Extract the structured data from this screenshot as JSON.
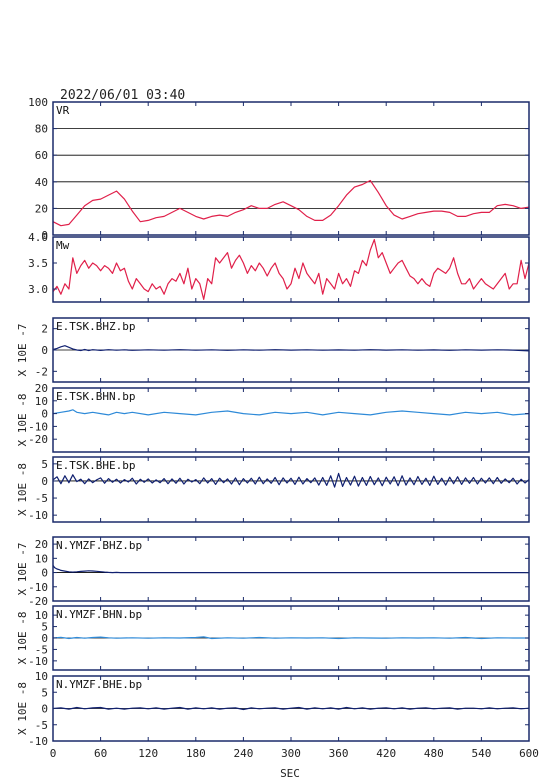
{
  "header": {
    "datetime": "2022/06/01  03:40"
  },
  "xaxis": {
    "label": "SEC",
    "ticks": [
      0,
      60,
      120,
      180,
      240,
      300,
      360,
      420,
      480,
      540,
      600
    ],
    "range": [
      0,
      600
    ]
  },
  "colors": {
    "vr": "#e0204a",
    "mw": "#e0204a",
    "dark": "#102070",
    "light": "#2e8ad8",
    "axis": "#1a2a6a",
    "grid": "#000000"
  },
  "chart_data": [
    {
      "id": "vr",
      "type": "line",
      "label": "VR",
      "ylim": [
        0,
        100
      ],
      "ytick_labels": [
        "100",
        "80",
        "60",
        "40",
        "20",
        "0"
      ],
      "grid": true,
      "x": [
        0,
        10,
        20,
        30,
        40,
        50,
        60,
        70,
        80,
        90,
        100,
        110,
        120,
        130,
        140,
        150,
        160,
        170,
        180,
        190,
        200,
        210,
        220,
        230,
        240,
        250,
        260,
        270,
        280,
        290,
        300,
        310,
        320,
        330,
        340,
        350,
        360,
        370,
        380,
        390,
        400,
        410,
        420,
        430,
        440,
        450,
        460,
        470,
        480,
        490,
        500,
        510,
        520,
        530,
        540,
        550,
        560,
        570,
        580,
        590,
        600
      ],
      "values": [
        10,
        7,
        8,
        15,
        22,
        26,
        27,
        30,
        33,
        27,
        18,
        10,
        11,
        13,
        14,
        17,
        20,
        17,
        14,
        12,
        14,
        15,
        14,
        17,
        19,
        22,
        20,
        20,
        23,
        25,
        22,
        19,
        14,
        11,
        11,
        15,
        22,
        30,
        36,
        38,
        41,
        32,
        22,
        15,
        12,
        14,
        16,
        17,
        18,
        18,
        17,
        14,
        14,
        16,
        17,
        17,
        22,
        23,
        22,
        20,
        21
      ]
    },
    {
      "id": "mw",
      "type": "line",
      "label": "Mw",
      "ylim": [
        2.75,
        4.0
      ],
      "ytick_labels": [
        "4.0",
        "3.5",
        "3.0"
      ],
      "grid": false,
      "x": [
        0,
        5,
        10,
        15,
        20,
        25,
        30,
        35,
        40,
        45,
        50,
        55,
        60,
        65,
        70,
        75,
        80,
        85,
        90,
        95,
        100,
        105,
        110,
        115,
        120,
        125,
        130,
        135,
        140,
        145,
        150,
        155,
        160,
        165,
        170,
        175,
        180,
        185,
        190,
        195,
        200,
        205,
        210,
        215,
        220,
        225,
        230,
        235,
        240,
        245,
        250,
        255,
        260,
        265,
        270,
        275,
        280,
        285,
        290,
        295,
        300,
        305,
        310,
        315,
        320,
        325,
        330,
        335,
        340,
        345,
        350,
        355,
        360,
        365,
        370,
        375,
        380,
        385,
        390,
        395,
        400,
        405,
        410,
        415,
        420,
        425,
        430,
        435,
        440,
        445,
        450,
        455,
        460,
        465,
        470,
        475,
        480,
        485,
        490,
        495,
        500,
        505,
        510,
        515,
        520,
        525,
        530,
        535,
        540,
        545,
        550,
        555,
        560,
        565,
        570,
        575,
        580,
        585,
        590,
        595,
        600
      ],
      "values": [
        2.95,
        3.05,
        2.9,
        3.1,
        3.0,
        3.6,
        3.3,
        3.45,
        3.55,
        3.4,
        3.5,
        3.45,
        3.35,
        3.45,
        3.4,
        3.3,
        3.5,
        3.35,
        3.4,
        3.15,
        3.0,
        3.2,
        3.1,
        3.0,
        2.95,
        3.1,
        3.0,
        3.05,
        2.9,
        3.1,
        3.2,
        3.15,
        3.3,
        3.1,
        3.4,
        3.0,
        3.2,
        3.1,
        2.8,
        3.2,
        3.1,
        3.6,
        3.5,
        3.6,
        3.7,
        3.4,
        3.55,
        3.65,
        3.5,
        3.3,
        3.45,
        3.35,
        3.5,
        3.4,
        3.25,
        3.4,
        3.5,
        3.3,
        3.2,
        3.0,
        3.1,
        3.4,
        3.2,
        3.5,
        3.3,
        3.2,
        3.1,
        3.3,
        2.9,
        3.2,
        3.1,
        3.0,
        3.3,
        3.1,
        3.2,
        3.05,
        3.35,
        3.3,
        3.55,
        3.45,
        3.75,
        3.95,
        3.6,
        3.7,
        3.5,
        3.3,
        3.4,
        3.5,
        3.55,
        3.4,
        3.25,
        3.2,
        3.1,
        3.2,
        3.1,
        3.05,
        3.3,
        3.4,
        3.35,
        3.3,
        3.4,
        3.6,
        3.3,
        3.1,
        3.1,
        3.2,
        3.0,
        3.1,
        3.2,
        3.1,
        3.05,
        3.0,
        3.1,
        3.2,
        3.3,
        3.0,
        3.1,
        3.1,
        3.55,
        3.2,
        3.5
      ]
    },
    {
      "id": "e-tsk-bhz",
      "type": "line",
      "label": "E.TSK.BHZ.bp",
      "ylabel": "X 10E -7",
      "ylim": [
        -3,
        3
      ],
      "ytick_labels": [
        "2",
        "0",
        "-2"
      ],
      "color": "dark",
      "zero_line": true,
      "x": [
        0,
        5,
        10,
        15,
        20,
        25,
        30,
        35,
        40,
        45,
        50,
        60,
        70,
        80,
        90,
        100,
        120,
        140,
        160,
        180,
        200,
        220,
        240,
        260,
        280,
        300,
        320,
        340,
        360,
        380,
        400,
        420,
        440,
        460,
        480,
        500,
        520,
        540,
        560,
        580,
        600
      ],
      "values": [
        0.05,
        0.15,
        0.3,
        0.4,
        0.25,
        0.1,
        0.0,
        -0.05,
        0.05,
        -0.05,
        0.03,
        -0.04,
        0.03,
        -0.02,
        0.02,
        -0.03,
        0.02,
        -0.02,
        0.03,
        -0.02,
        0.02,
        -0.03,
        0.02,
        -0.02,
        0.03,
        -0.01,
        0.02,
        -0.02,
        0.01,
        -0.02,
        0.03,
        -0.01,
        0.02,
        -0.02,
        0.01,
        -0.03,
        0.02,
        -0.01,
        0.02,
        -0.01,
        -0.08
      ]
    },
    {
      "id": "e-tsk-bhn",
      "type": "line",
      "label": "E.TSK.BHN.bp",
      "ylabel": "X 10E -8",
      "ylim": [
        -30,
        20
      ],
      "ytick_labels": [
        "20",
        "10",
        "0",
        "-10",
        "-20"
      ],
      "color": "light",
      "zero_line": false,
      "x": [
        0,
        10,
        20,
        25,
        30,
        40,
        50,
        60,
        70,
        80,
        90,
        100,
        120,
        140,
        160,
        180,
        200,
        220,
        240,
        260,
        280,
        300,
        320,
        340,
        360,
        380,
        400,
        420,
        440,
        460,
        480,
        500,
        520,
        540,
        560,
        580,
        600
      ],
      "values": [
        0,
        1,
        2,
        3,
        1,
        0,
        1,
        0,
        -1,
        1,
        0,
        1,
        -1,
        1,
        0,
        -1,
        1,
        2,
        0,
        -1,
        1,
        0,
        1,
        -1,
        1,
        0,
        -1,
        1,
        2,
        1,
        0,
        -1,
        1,
        0,
        1,
        -1,
        0
      ]
    },
    {
      "id": "e-tsk-bhe",
      "type": "line",
      "label": "E.TSK.BHE.bp",
      "ylabel": "X 10E -8",
      "ylim": [
        -12,
        7
      ],
      "ytick_labels": [
        "5",
        "0",
        "-5",
        "-10"
      ],
      "color": "dark",
      "zero_line": true,
      "x": [
        0,
        5,
        10,
        15,
        20,
        25,
        30,
        35,
        40,
        45,
        50,
        55,
        60,
        65,
        70,
        75,
        80,
        85,
        90,
        95,
        100,
        105,
        110,
        115,
        120,
        125,
        130,
        135,
        140,
        145,
        150,
        155,
        160,
        165,
        170,
        175,
        180,
        185,
        190,
        195,
        200,
        205,
        210,
        215,
        220,
        225,
        230,
        235,
        240,
        245,
        250,
        255,
        260,
        265,
        270,
        275,
        280,
        285,
        290,
        295,
        300,
        305,
        310,
        315,
        320,
        325,
        330,
        335,
        340,
        345,
        350,
        355,
        360,
        365,
        370,
        375,
        380,
        385,
        390,
        395,
        400,
        405,
        410,
        415,
        420,
        425,
        430,
        435,
        440,
        445,
        450,
        455,
        460,
        465,
        470,
        475,
        480,
        485,
        490,
        495,
        500,
        505,
        510,
        515,
        520,
        525,
        530,
        535,
        540,
        545,
        550,
        555,
        560,
        565,
        570,
        575,
        580,
        585,
        590,
        595,
        600
      ],
      "values": [
        0.3,
        1.2,
        -0.8,
        1.5,
        -0.5,
        1.8,
        -0.2,
        0.5,
        -0.8,
        0.6,
        -0.5,
        0.3,
        0.9,
        -0.7,
        0.7,
        -0.4,
        0.5,
        -0.6,
        0.4,
        -0.3,
        0.8,
        -0.9,
        0.5,
        -0.4,
        0.6,
        -0.6,
        0.3,
        -0.5,
        0.7,
        -0.8,
        0.6,
        -0.7,
        0.8,
        -0.9,
        0.5,
        -0.3,
        0.4,
        -0.8,
        0.9,
        -0.6,
        0.7,
        -1.0,
        0.8,
        -0.5,
        0.6,
        -0.9,
        0.9,
        -1.1,
        0.7,
        -0.6,
        0.8,
        -0.9,
        1.1,
        -0.8,
        0.6,
        -0.7,
        1.0,
        -1.1,
        0.9,
        -0.6,
        0.8,
        -1.0,
        1.1,
        -0.9,
        0.7,
        -0.5,
        0.9,
        -1.2,
        1.0,
        -1.3,
        1.5,
        -1.8,
        2.2,
        -1.6,
        1.0,
        -1.2,
        1.4,
        -1.5,
        1.0,
        -1.3,
        1.3,
        -1.1,
        0.9,
        -1.4,
        1.1,
        -0.9,
        1.2,
        -1.4,
        1.5,
        -1.2,
        0.9,
        -1.1,
        1.3,
        -1.0,
        0.8,
        -1.3,
        1.4,
        -1.0,
        0.8,
        -1.2,
        1.1,
        -0.8,
        1.2,
        -1.0,
        0.9,
        -0.7,
        1.0,
        -0.9,
        0.8,
        -0.6,
        0.9,
        -0.8,
        1.0,
        -0.7,
        0.6,
        -0.5,
        0.8,
        -0.9,
        0.5,
        -0.6,
        0.4
      ]
    },
    {
      "id": "n-ymzf-bhz",
      "type": "line",
      "label": "N.YMZF.BHZ.bp",
      "ylabel": "X 10E -7",
      "ylim": [
        -20,
        25
      ],
      "ytick_labels": [
        "20",
        "10",
        "0",
        "-10",
        "-20"
      ],
      "color": "dark",
      "zero_line": true,
      "x": [
        0,
        2,
        5,
        8,
        10,
        15,
        20,
        25,
        30,
        35,
        40,
        45,
        50,
        55,
        60,
        65,
        70,
        75,
        80,
        85,
        90,
        95,
        100,
        120,
        140,
        160,
        180,
        200,
        240,
        280,
        320,
        360,
        400,
        440,
        480,
        520,
        560,
        600
      ],
      "values": [
        5,
        3.5,
        2.5,
        2,
        1.5,
        1,
        0.5,
        0.3,
        0.5,
        0.8,
        1,
        1.2,
        1.1,
        0.9,
        0.6,
        0.3,
        0.1,
        0,
        0.1,
        0,
        0,
        0,
        0,
        0,
        0,
        0,
        0,
        0,
        0,
        0,
        0,
        0,
        0,
        0,
        0,
        0,
        0,
        0
      ]
    },
    {
      "id": "n-ymzf-bhn",
      "type": "line",
      "label": "N.YMZF.BHN.bp",
      "ylabel": "X 10E -8",
      "ylim": [
        -14,
        14
      ],
      "ytick_labels": [
        "10",
        "5",
        "0",
        "-5",
        "-10"
      ],
      "color": "light",
      "zero_line": true,
      "x": [
        0,
        10,
        20,
        30,
        40,
        50,
        60,
        70,
        80,
        100,
        120,
        140,
        160,
        180,
        190,
        200,
        220,
        240,
        260,
        280,
        300,
        320,
        340,
        360,
        380,
        400,
        420,
        440,
        460,
        480,
        500,
        520,
        540,
        560,
        580,
        600
      ],
      "values": [
        0,
        0.3,
        -0.2,
        0.2,
        -0.1,
        0.2,
        0.4,
        0.1,
        -0.1,
        0.1,
        -0.1,
        0.1,
        0,
        0.2,
        0.5,
        -0.2,
        0.1,
        -0.1,
        0.2,
        -0.1,
        0.1,
        0,
        0.1,
        -0.2,
        0.1,
        0,
        -0.1,
        0.1,
        0,
        0.1,
        -0.1,
        0.2,
        -0.2,
        0.1,
        0,
        0
      ]
    },
    {
      "id": "n-ymzf-bhe",
      "type": "line",
      "label": "N.YMZF.BHE.bp",
      "ylabel": "X 10E -8",
      "ylim": [
        -10,
        10
      ],
      "ytick_labels": [
        "10",
        "5",
        "0",
        "-5",
        "-10"
      ],
      "color": "dark",
      "zero_line": true,
      "x": [
        0,
        10,
        20,
        30,
        40,
        50,
        60,
        70,
        80,
        90,
        100,
        110,
        120,
        130,
        140,
        150,
        160,
        170,
        180,
        190,
        200,
        210,
        220,
        230,
        240,
        250,
        260,
        270,
        280,
        290,
        300,
        310,
        320,
        330,
        340,
        350,
        360,
        370,
        380,
        390,
        400,
        410,
        420,
        430,
        440,
        450,
        460,
        470,
        480,
        490,
        500,
        510,
        520,
        530,
        540,
        550,
        560,
        570,
        580,
        590,
        600
      ],
      "values": [
        0,
        0.2,
        -0.2,
        0.3,
        -0.1,
        0.2,
        0.3,
        -0.2,
        0.1,
        -0.2,
        0.1,
        0.2,
        -0.1,
        0.2,
        -0.2,
        0.1,
        0.3,
        -0.2,
        0.2,
        -0.1,
        0.2,
        -0.2,
        0.1,
        0.2,
        -0.3,
        0.2,
        -0.1,
        0.1,
        0.2,
        -0.2,
        0.1,
        0.3,
        -0.2,
        0.2,
        -0.1,
        0.2,
        -0.2,
        0.3,
        -0.1,
        0.2,
        -0.2,
        0.1,
        0.2,
        -0.1,
        0.2,
        -0.2,
        0.1,
        0.2,
        -0.1,
        0.1,
        0.2,
        -0.2,
        0.1,
        0.1,
        -0.1,
        0.2,
        -0.1,
        0.1,
        0.2,
        -0.1,
        0.1
      ]
    }
  ]
}
